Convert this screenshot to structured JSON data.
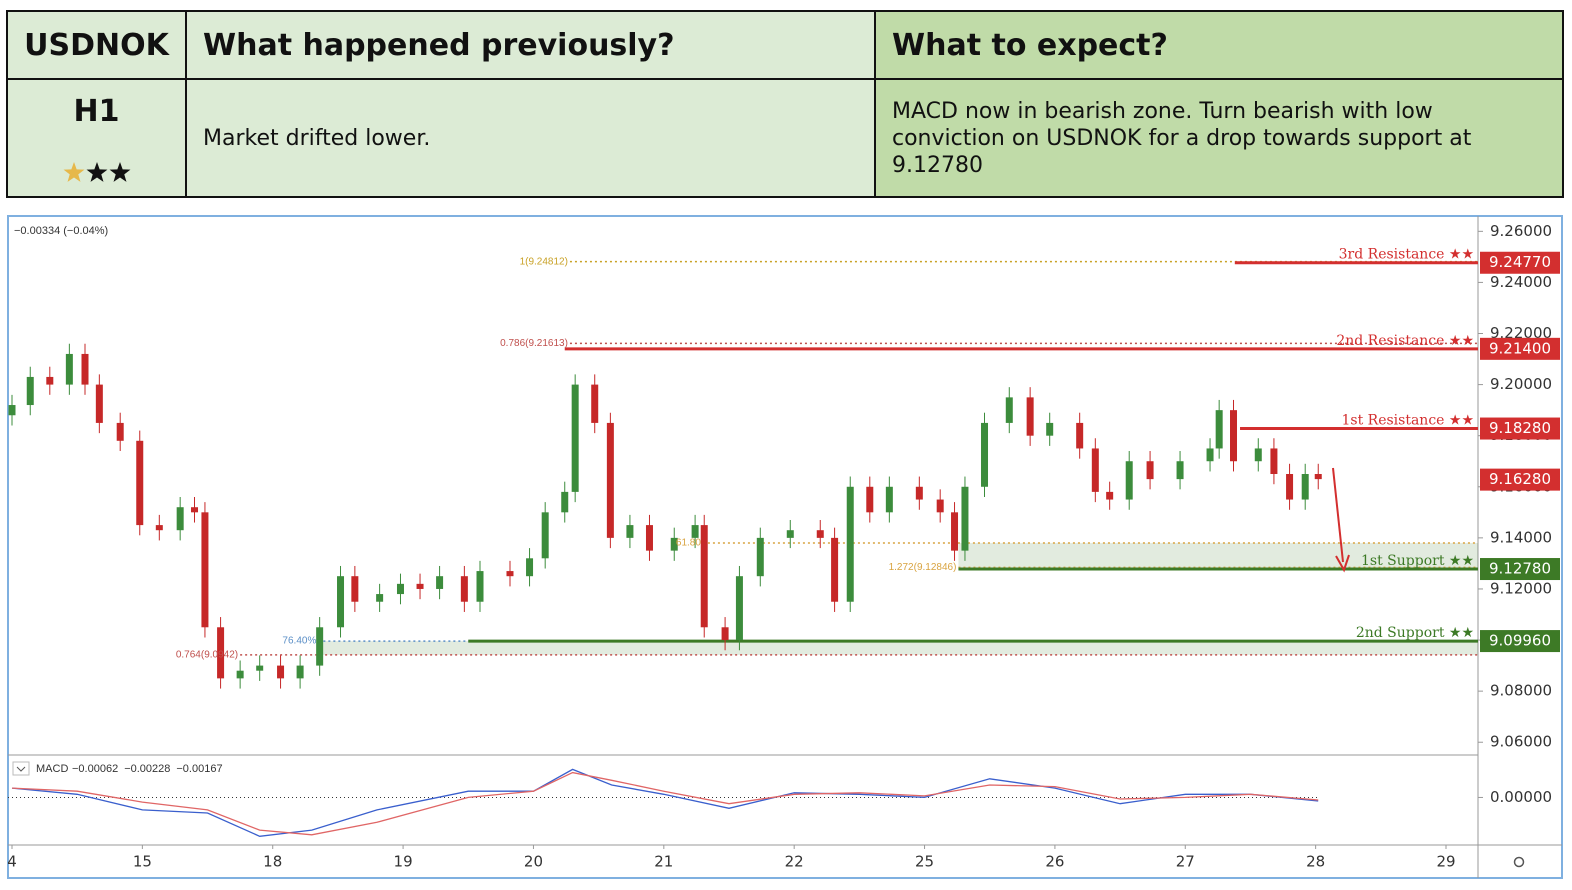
{
  "header": {
    "symbol": "USDNOK",
    "timeframe": "H1",
    "previous_title": "What happened previously?",
    "expect_title": "What to expect?",
    "previous_text": "Market drifted lower.",
    "expect_text": "MACD now in bearish zone. Turn bearish with low conviction on USDNOK for a drop towards support at 9.12780"
  },
  "chart_data": {
    "type": "candlestick",
    "info": "−0.00334 (−0.04%)",
    "xlim": [
      0,
      11
    ],
    "xticks": [
      {
        "value": 0,
        "label": "4"
      },
      {
        "value": 1,
        "label": "15"
      },
      {
        "value": 2,
        "label": "18"
      },
      {
        "value": 3,
        "label": "19"
      },
      {
        "value": 4,
        "label": "20"
      },
      {
        "value": 5,
        "label": "21"
      },
      {
        "value": 6,
        "label": "22"
      },
      {
        "value": 7,
        "label": "25"
      },
      {
        "value": 8,
        "label": "26"
      },
      {
        "value": 9,
        "label": "27"
      },
      {
        "value": 10,
        "label": "28"
      },
      {
        "value": 11,
        "label": "29"
      }
    ],
    "ylim": [
      9.055,
      9.266
    ],
    "yticks": [
      {
        "value": 9.26,
        "label": "9.26000"
      },
      {
        "value": 9.24,
        "label": "9.24000"
      },
      {
        "value": 9.22,
        "label": "9.22000"
      },
      {
        "value": 9.2,
        "label": "9.20000"
      },
      {
        "value": 9.18,
        "label": "9.18000"
      },
      {
        "value": 9.16,
        "label": "9.16000"
      },
      {
        "value": 9.14,
        "label": "9.14000"
      },
      {
        "value": 9.12,
        "label": "9.12000"
      },
      {
        "value": 9.1,
        "label": "9.10000"
      },
      {
        "value": 9.08,
        "label": "9.08000"
      },
      {
        "value": 9.06,
        "label": "9.06000"
      }
    ],
    "up_color": "#3c8c3c",
    "down_color": "#c62828",
    "x": [
      0,
      0.14,
      0.29,
      0.44,
      0.56,
      0.67,
      0.83,
      0.98,
      1.13,
      1.29,
      1.4,
      1.48,
      1.6,
      1.75,
      1.9,
      2.06,
      2.21,
      2.36,
      2.52,
      2.63,
      2.82,
      2.98,
      3.13,
      3.28,
      3.47,
      3.59,
      3.82,
      3.97,
      4.09,
      4.24,
      4.32,
      4.47,
      4.59,
      4.74,
      4.89,
      5.08,
      5.24,
      5.31,
      5.47,
      5.58,
      5.74,
      5.97,
      6.2,
      6.31,
      6.43,
      6.58,
      6.73,
      6.96,
      7.12,
      7.23,
      7.31,
      7.46,
      7.65,
      7.81,
      7.96,
      8.19,
      8.31,
      8.42,
      8.57,
      8.73,
      8.96,
      9.19,
      9.26,
      9.37,
      9.56,
      9.68,
      9.8,
      9.92,
      10.02
    ],
    "open": [
      9.188,
      9.192,
      9.203,
      9.2,
      9.212,
      9.2,
      9.185,
      9.178,
      9.145,
      9.143,
      9.152,
      9.15,
      9.105,
      9.085,
      9.088,
      9.09,
      9.085,
      9.09,
      9.105,
      9.125,
      9.115,
      9.118,
      9.122,
      9.12,
      9.125,
      9.115,
      9.127,
      9.125,
      9.132,
      9.15,
      9.158,
      9.2,
      9.185,
      9.14,
      9.145,
      9.135,
      9.14,
      9.145,
      9.105,
      9.1,
      9.125,
      9.14,
      9.143,
      9.14,
      9.115,
      9.16,
      9.15,
      9.16,
      9.155,
      9.15,
      9.135,
      9.16,
      9.185,
      9.195,
      9.18,
      9.185,
      9.175,
      9.158,
      9.155,
      9.17,
      9.163,
      9.17,
      9.175,
      9.19,
      9.17,
      9.175,
      9.165,
      9.155,
      9.165
    ],
    "high": [
      9.196,
      9.207,
      9.207,
      9.216,
      9.216,
      9.204,
      9.189,
      9.182,
      9.149,
      9.156,
      9.156,
      9.154,
      9.109,
      9.092,
      9.094,
      9.094,
      9.094,
      9.109,
      9.129,
      9.129,
      9.122,
      9.126,
      9.126,
      9.129,
      9.129,
      9.131,
      9.131,
      9.136,
      9.154,
      9.162,
      9.204,
      9.204,
      9.189,
      9.149,
      9.149,
      9.144,
      9.149,
      9.149,
      9.109,
      9.129,
      9.144,
      9.147,
      9.147,
      9.144,
      9.164,
      9.164,
      9.164,
      9.164,
      9.159,
      9.154,
      9.164,
      9.189,
      9.199,
      9.199,
      9.189,
      9.189,
      9.179,
      9.162,
      9.174,
      9.174,
      9.174,
      9.179,
      9.194,
      9.194,
      9.179,
      9.179,
      9.169,
      9.169,
      9.169
    ],
    "low": [
      9.184,
      9.188,
      9.196,
      9.196,
      9.196,
      9.181,
      9.174,
      9.141,
      9.139,
      9.139,
      9.146,
      9.101,
      9.081,
      9.081,
      9.084,
      9.081,
      9.081,
      9.086,
      9.101,
      9.111,
      9.111,
      9.114,
      9.116,
      9.116,
      9.111,
      9.111,
      9.121,
      9.121,
      9.128,
      9.146,
      9.154,
      9.181,
      9.136,
      9.136,
      9.131,
      9.131,
      9.136,
      9.101,
      9.096,
      9.096,
      9.121,
      9.136,
      9.136,
      9.111,
      9.111,
      9.146,
      9.146,
      9.151,
      9.146,
      9.131,
      9.131,
      9.156,
      9.181,
      9.176,
      9.176,
      9.171,
      9.154,
      9.151,
      9.151,
      9.159,
      9.159,
      9.166,
      9.171,
      9.166,
      9.166,
      9.161,
      9.151,
      9.151,
      9.159
    ],
    "close": [
      9.192,
      9.203,
      9.2,
      9.212,
      9.2,
      9.185,
      9.178,
      9.145,
      9.143,
      9.152,
      9.15,
      9.105,
      9.085,
      9.088,
      9.09,
      9.085,
      9.09,
      9.105,
      9.125,
      9.115,
      9.118,
      9.122,
      9.12,
      9.125,
      9.115,
      9.127,
      9.125,
      9.132,
      9.15,
      9.158,
      9.2,
      9.185,
      9.14,
      9.145,
      9.135,
      9.14,
      9.145,
      9.105,
      9.1,
      9.125,
      9.14,
      9.143,
      9.14,
      9.115,
      9.16,
      9.15,
      9.16,
      9.155,
      9.15,
      9.135,
      9.16,
      9.185,
      9.195,
      9.18,
      9.185,
      9.175,
      9.158,
      9.155,
      9.17,
      9.163,
      9.17,
      9.175,
      9.19,
      9.17,
      9.175,
      9.165,
      9.155,
      9.165,
      9.163
    ],
    "levels": [
      {
        "name": "3rd Resistance ★★",
        "value": 9.2477,
        "label": "9.24770",
        "color": "#d32f2f",
        "start": 9.38
      },
      {
        "name": "2nd Resistance ★★",
        "value": 9.214,
        "label": "9.21400",
        "color": "#d32f2f",
        "start": 4.24
      },
      {
        "name": "1st Resistance ★★",
        "value": 9.1828,
        "label": "9.18280",
        "color": "#d32f2f",
        "start": 9.42
      },
      {
        "name": "1st Support ★★",
        "value": 9.1278,
        "label": "9.12780",
        "color": "#3d7a26",
        "start": 7.26
      },
      {
        "name": "2nd Support ★★",
        "value": 9.0996,
        "label": "9.09960",
        "color": "#3d7a26",
        "start": 3.5
      }
    ],
    "last_price": {
      "value": 9.1628,
      "label": "9.16280",
      "color": "#d32f2f"
    },
    "fibs": [
      {
        "label": "1(9.24812)",
        "value": 9.24812,
        "start": 4.28,
        "color": "#c9a227"
      },
      {
        "label": "0.786(9.21613)",
        "value": 9.21613,
        "start": 4.28,
        "color": "#c0504d"
      },
      {
        "label": "0.764(9.0942)",
        "value": 9.0942,
        "start": 1.75,
        "color": "#c0504d"
      },
      {
        "label": "76.40%",
        "value": 9.0996,
        "start": 2.35,
        "color": "#5b8fc7"
      },
      {
        "label": "61.80",
        "value": 9.138,
        "start": 5.3,
        "color": "#d9a441"
      },
      {
        "label": "1.272(9.12846)",
        "value": 9.12846,
        "start": 7.26,
        "color": "#d9a441"
      }
    ],
    "zones": [
      {
        "low": 9.1278,
        "high": 9.138,
        "start": 7.26
      },
      {
        "low": 9.0942,
        "high": 9.0996,
        "start": 2.35
      }
    ],
    "macd": {
      "name": "MACD",
      "legend": [
        {
          "value": -0.00062,
          "label": "−0.00062",
          "color": "#111111"
        },
        {
          "value": -0.00228,
          "label": "−0.00228",
          "color": "#3a5fcd"
        },
        {
          "value": -0.00167,
          "label": "−0.00167",
          "color": "#e06666"
        }
      ],
      "ylim": [
        -0.028,
        0.026
      ],
      "yticks": [
        {
          "value": 0,
          "label": "0.00000"
        }
      ],
      "x": [
        0,
        0.5,
        1,
        1.5,
        1.9,
        2.3,
        2.8,
        3.5,
        4,
        4.3,
        4.6,
        5,
        5.5,
        6,
        6.5,
        7,
        7.5,
        8,
        8.5,
        9,
        9.5,
        10.02
      ],
      "series": [
        {
          "color": "#3a5fcd",
          "values": [
            0.006,
            0.002,
            -0.008,
            -0.01,
            -0.025,
            -0.021,
            -0.008,
            0.004,
            0.004,
            0.018,
            0.008,
            0.002,
            -0.007,
            0.003,
            0.002,
            0.0,
            0.012,
            0.006,
            -0.004,
            0.002,
            0.002,
            -0.00228
          ]
        },
        {
          "color": "#e06666",
          "values": [
            0.006,
            0.004,
            -0.003,
            -0.008,
            -0.021,
            -0.024,
            -0.016,
            0.0,
            0.004,
            0.016,
            0.011,
            0.004,
            -0.004,
            0.002,
            0.003,
            0.001,
            0.008,
            0.007,
            -0.001,
            0.0,
            0.002,
            -0.00167
          ]
        }
      ]
    }
  }
}
